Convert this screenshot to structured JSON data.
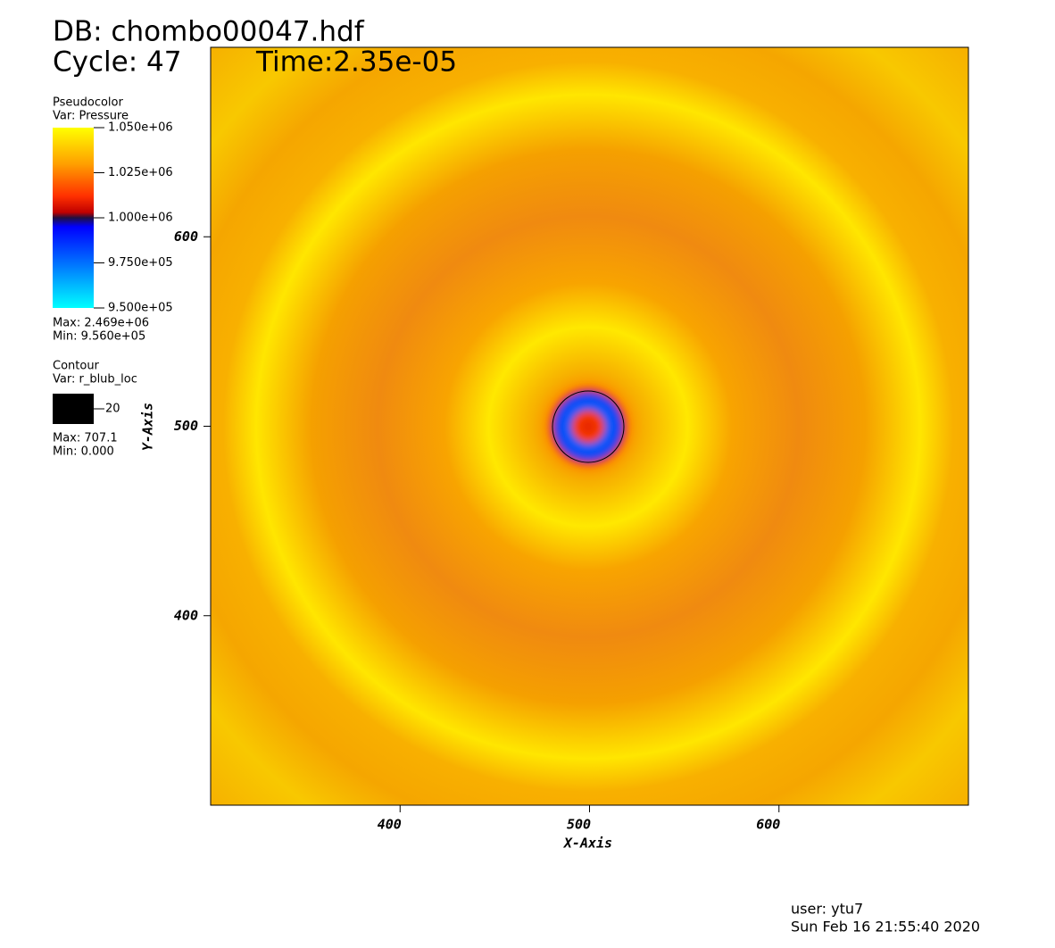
{
  "chart_data": {
    "type": "pseudocolor",
    "title": "DB: chombo00047.hdf",
    "cycle": "Cycle: 47",
    "time": "Time:2.35e-05",
    "x_label": "X-Axis",
    "y_label": "Y-Axis",
    "xlim": [
      300,
      700
    ],
    "ylim": [
      300,
      700
    ],
    "xticks": [
      400,
      500,
      600
    ],
    "yticks": [
      400,
      500,
      600
    ],
    "pseudocolor_legend": {
      "title": "Pseudocolor",
      "var": "Var: Pressure",
      "range": [
        950000,
        1050000
      ],
      "ticks": [
        {
          "value": 1050000,
          "label": "1.050e+06"
        },
        {
          "value": 1025000,
          "label": "1.025e+06"
        },
        {
          "value": 1000000,
          "label": "1.000e+06"
        },
        {
          "value": 975000,
          "label": "9.750e+05"
        },
        {
          "value": 950000,
          "label": "9.500e+05"
        }
      ],
      "max": "Max: 2.469e+06",
      "min": "Min: 9.560e+05"
    },
    "contour_legend": {
      "title": "Contour",
      "var": "Var: r_blub_loc",
      "level": 20,
      "color": "#000000",
      "max": "Max: 707.1",
      "min": "Min: 0.000"
    },
    "user": "user: ytu7",
    "date": "Sun Feb 16 21:55:40 2020"
  }
}
